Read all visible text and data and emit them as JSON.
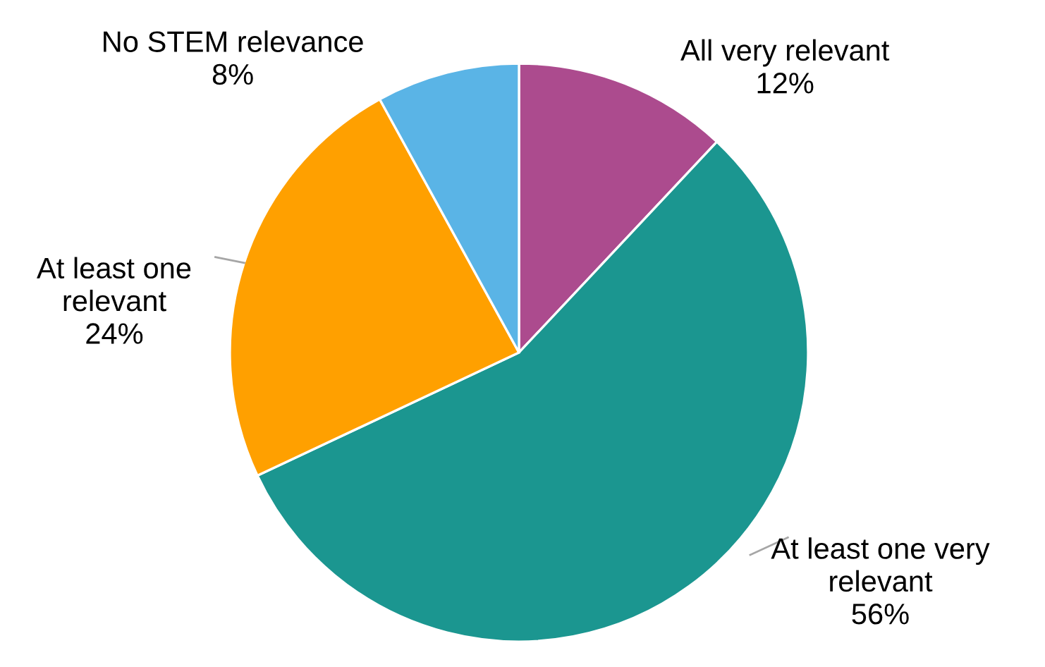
{
  "chart_data": {
    "type": "pie",
    "categories": [
      "All very relevant",
      "At least one very relevant",
      "At least one relevant",
      "No STEM relevance"
    ],
    "values": [
      12,
      56,
      24,
      8
    ],
    "colors": [
      "#ac4b8e",
      "#1b9690",
      "#ffa000",
      "#5ab4e6"
    ],
    "value_labels": [
      "12%",
      "56%",
      "24%",
      "8%"
    ],
    "legend": false
  }
}
